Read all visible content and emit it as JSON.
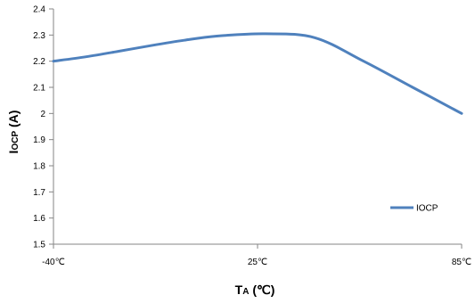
{
  "chart_data": {
    "type": "line",
    "categories": [
      "-40℃",
      "25℃",
      "85℃"
    ],
    "x": [
      -40,
      -30,
      -20,
      -10,
      0,
      10,
      25,
      40,
      55,
      70,
      85
    ],
    "series": [
      {
        "name": "IOCP",
        "color": "#4F81BD",
        "values": [
          2.2,
          2.217,
          2.238,
          2.26,
          2.28,
          2.296,
          2.305,
          2.29,
          2.2,
          2.1,
          2.0
        ]
      }
    ],
    "xlabel": {
      "main": "T",
      "sub": "A",
      "unit": "(℃)"
    },
    "ylabel": {
      "main": "I",
      "sub": "OCP",
      "unit": "(A)"
    },
    "xlim": [
      -40,
      85
    ],
    "ylim": [
      1.5,
      2.4
    ],
    "yticks": [
      "1.5",
      "1.6",
      "1.7",
      "1.8",
      "1.9",
      "2",
      "2.1",
      "2.2",
      "2.3",
      "2.4"
    ],
    "grid": false,
    "legend": "right"
  }
}
